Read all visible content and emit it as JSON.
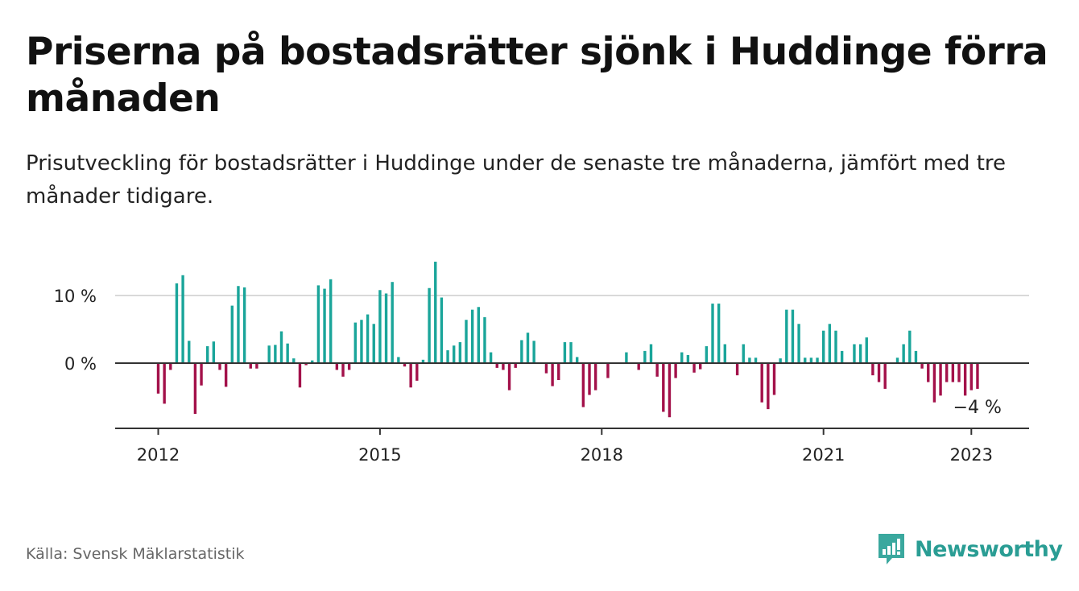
{
  "header": {
    "title": "Priserna på bostadsrätter sjönk i Huddinge förra månaden",
    "subtitle": "Prisutveckling för bostadsrätter i Huddinge under de senaste tre månaderna, jämfört med tre månader tidigare."
  },
  "footer": {
    "source": "Källa: Svensk Mäklarstatistik",
    "brand": "Newsworthy",
    "brand_icon": "bar-chart-logo-icon"
  },
  "colors": {
    "positive": "#1aa59a",
    "negative": "#a3114a",
    "axis": "#333333",
    "grid": "#d9d9d9",
    "brand": "#2a9d94"
  },
  "chart_data": {
    "type": "bar",
    "x_start": "2012-01",
    "x_end": "2023-02",
    "x_ticks": [
      "2012",
      "2015",
      "2018",
      "2021",
      "2023"
    ],
    "y_ticks": [
      "0 %",
      "10 %"
    ],
    "ylim": [
      -9.5,
      15
    ],
    "grid": true,
    "last_value_label": "−4 %",
    "values": [
      -4.5,
      -6,
      -1,
      11.8,
      13,
      3.3,
      -7.5,
      -3.3,
      2.5,
      3.2,
      -1,
      -3.5,
      8.5,
      11.4,
      11.2,
      -0.8,
      -0.8,
      0,
      2.6,
      2.7,
      4.7,
      2.9,
      0.7,
      -3.6,
      -0.3,
      0.4,
      11.5,
      11,
      12.4,
      -1,
      -2,
      -1,
      6,
      6.4,
      7.2,
      5.8,
      10.8,
      10.3,
      12,
      0.9,
      -0.5,
      -3.6,
      -2.6,
      0.5,
      11.1,
      15,
      9.7,
      1.9,
      2.6,
      3.1,
      6.4,
      7.9,
      8.3,
      6.8,
      1.6,
      -0.7,
      -1,
      -4,
      -0.7,
      3.4,
      4.5,
      3.3,
      0,
      -1.5,
      -3.4,
      -2.5,
      3.1,
      3.1,
      0.9,
      -6.5,
      -4.7,
      -4,
      0,
      -2.2,
      0,
      0,
      1.6,
      0,
      -1,
      1.8,
      2.8,
      -2,
      -7.2,
      -8,
      -2.2,
      1.6,
      1.2,
      -1.4,
      -0.9,
      2.5,
      8.8,
      8.8,
      2.8,
      0,
      -1.8,
      2.8,
      0.8,
      0.8,
      -5.8,
      -6.8,
      -4.7,
      0.7,
      7.9,
      7.9,
      5.8,
      0.8,
      0.8,
      0.8,
      4.8,
      5.8,
      4.8,
      1.8,
      0,
      2.8,
      2.8,
      3.8,
      -1.8,
      -2.8,
      -3.8,
      0,
      0.8,
      2.8,
      4.8,
      1.8,
      -0.8,
      -2.8,
      -5.8,
      -4.8,
      -2.8,
      -2.8,
      -2.8,
      -4.8,
      -4,
      -3.8
    ]
  }
}
